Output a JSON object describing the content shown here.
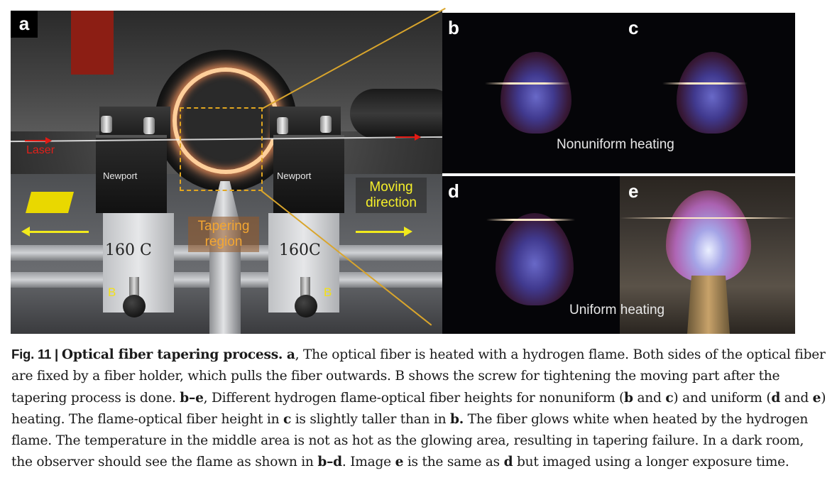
{
  "panel_a": {
    "tag": "a",
    "laser_label": "Laser",
    "brand_left": "Newport",
    "brand_right": "Newport",
    "block_left_text": "160 C",
    "block_right_text": "160C",
    "tapering_label": "Tapering region",
    "moving_label": "Moving direction",
    "screw_label_left": "B",
    "screw_label_right": "B"
  },
  "panel_b": {
    "tag": "b"
  },
  "panel_c": {
    "tag": "c"
  },
  "panel_d": {
    "tag": "d"
  },
  "panel_e": {
    "tag": "e"
  },
  "labels": {
    "nonuniform": "Nonuniform heating",
    "uniform": "Uniform heating"
  },
  "colors": {
    "tapering_box": "#e1a620",
    "moving_text": "#f6f02a",
    "laser_arrow": "#e21a14",
    "connector": "#d9a52c"
  },
  "caption": {
    "fig_label": "Fig. 11 | ",
    "title": "Optical fiber tapering process.",
    "p1_tag": "a",
    "p1_text": ", The optical fiber is heated with a hydrogen flame. Both sides of the optical fiber are fixed by a fiber holder, which pulls the fiber outwards. B shows the screw for tightening the moving part after the tapering process is done. ",
    "p2_tag": "b–e",
    "p2_text_a": ", Different hydrogen flame-optical fiber heights for nonuniform (",
    "p2_b": "b",
    "p2_and1": " and ",
    "p2_c": "c",
    "p2_text_b": ") and uniform (",
    "p2_d": "d",
    "p2_and2": " and ",
    "p2_e": "e",
    "p2_text_c": ") heating. The flame-optical fiber height in ",
    "p2_c2": "c",
    "p2_text_d": " is slightly taller than in ",
    "p2_b2": "b.",
    "p2_text_e": " The fiber glows white when heated by the hydrogen flame. The temperature in the middle area is not as hot as the glowing area, resulting in tapering failure. In a dark room, the observer should see the flame as shown in ",
    "p2_bd": "b–d",
    "p2_text_f": ". Image ",
    "p2_e2": "e",
    "p2_text_g": " is the same as ",
    "p2_d2": "d",
    "p2_text_h": " but imaged using a longer exposure time."
  }
}
